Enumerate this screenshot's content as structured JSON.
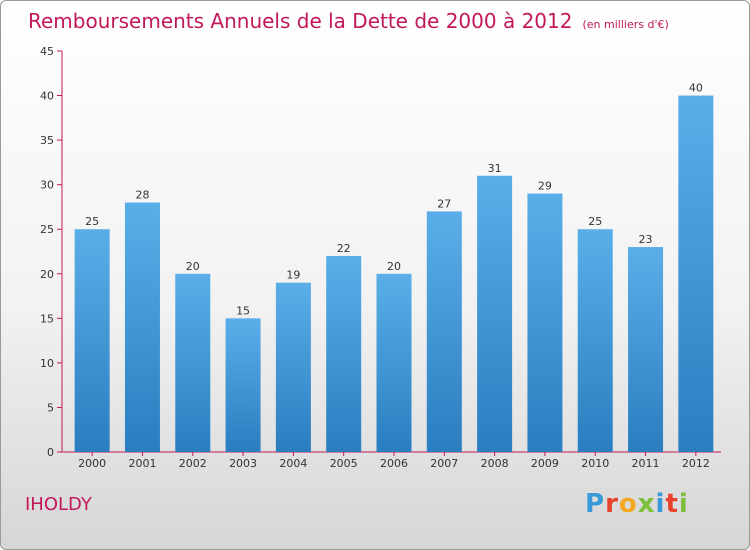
{
  "header": {
    "title": "Remboursements Annuels de la Dette de 2000 à 2012",
    "unit": "(en milliers d'€)"
  },
  "footer": {
    "commune": "IHOLDY",
    "logo": {
      "letters": [
        "P",
        "r",
        "o",
        "x",
        "i",
        "t",
        "i"
      ],
      "colors": [
        "#3a9ad9",
        "#e8412c",
        "#f5a623",
        "#7cbf3b",
        "#3a9ad9",
        "#e8412c",
        "#7cbf3b"
      ]
    }
  },
  "chart_data": {
    "type": "bar",
    "title": "Remboursements Annuels de la Dette de 2000 à 2012",
    "categories": [
      "2000",
      "2001",
      "2002",
      "2003",
      "2004",
      "2005",
      "2006",
      "2007",
      "2008",
      "2009",
      "2010",
      "2011",
      "2012"
    ],
    "values": [
      25,
      28,
      20,
      15,
      19,
      22,
      20,
      27,
      31,
      29,
      25,
      23,
      40
    ],
    "ylim": [
      0,
      45
    ],
    "yticks": [
      0,
      5,
      10,
      15,
      20,
      25,
      30,
      35,
      40,
      45
    ],
    "grid": false,
    "bar_color_top": "#5aaee8",
    "bar_color_bottom": "#2a7ec0",
    "axis_color": "#c2185b"
  }
}
